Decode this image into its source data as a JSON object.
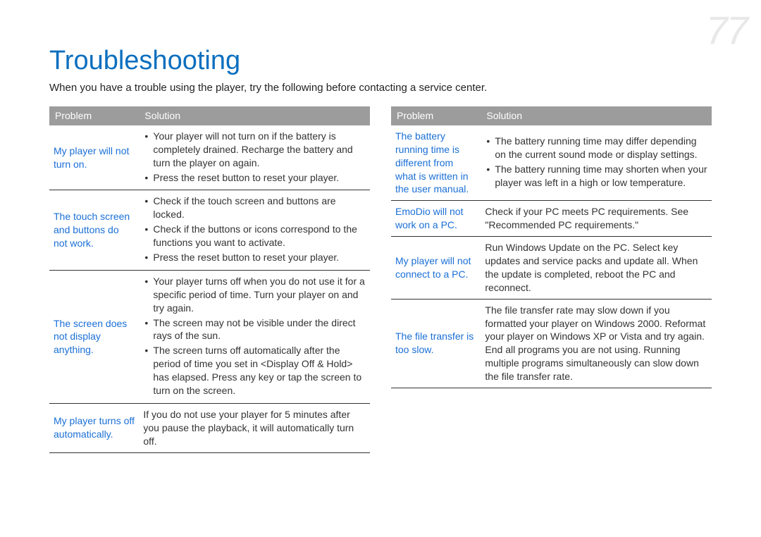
{
  "page_number": "77",
  "title": "Troubleshooting",
  "intro": "When you have a trouble using the player, try the following before contacting a service center.",
  "headers": {
    "problem": "Problem",
    "solution": "Solution"
  },
  "left_rows": [
    {
      "problem": "My player will not turn on.",
      "bullets": [
        "Your player will not turn on if the battery is completely drained. Recharge the battery and turn the player on again.",
        "Press the reset button to reset your player."
      ]
    },
    {
      "problem": "The touch screen and buttons do not work.",
      "bullets": [
        "Check if the touch screen and buttons are locked.",
        "Check if the buttons or icons correspond to the functions you want to activate.",
        "Press the reset button to reset your player."
      ]
    },
    {
      "problem": "The screen does not display anything.",
      "bullets": [
        "Your player turns off when you do not use it for a specific period of time. Turn your player on and try again.",
        "The screen may not be visible under the direct rays of the sun.",
        "The screen turns off automatically after the period of time you set in <Display Off & Hold> has elapsed. Press any key or tap the screen to turn on the screen."
      ]
    },
    {
      "problem": "My player turns off automatically.",
      "plain": "If you do not use your player for 5 minutes after you pause the playback, it will automatically turn off."
    }
  ],
  "right_rows": [
    {
      "problem": "The battery running time is different from what is written in the user manual.",
      "bullets": [
        "The battery running time may differ depending on the current sound mode or display settings.",
        "The battery running time may shorten when your player was left in a high or low temperature."
      ]
    },
    {
      "problem": "EmoDio will not work on a PC.",
      "plain": "Check if your PC meets PC requirements. See \"Recommended PC requirements.\""
    },
    {
      "problem": "My player will not connect to a PC.",
      "plain": "Run Windows Update on the PC. Select key updates and service packs and update all. When the update is completed, reboot the PC and reconnect."
    },
    {
      "problem": "The file transfer is too slow.",
      "plain": "The file transfer rate may slow down if you formatted your player on Windows 2000. Reformat your player on Windows XP or Vista and try again.\nEnd all programs you are not using. Running multiple programs simultaneously can slow down the file transfer rate."
    }
  ]
}
